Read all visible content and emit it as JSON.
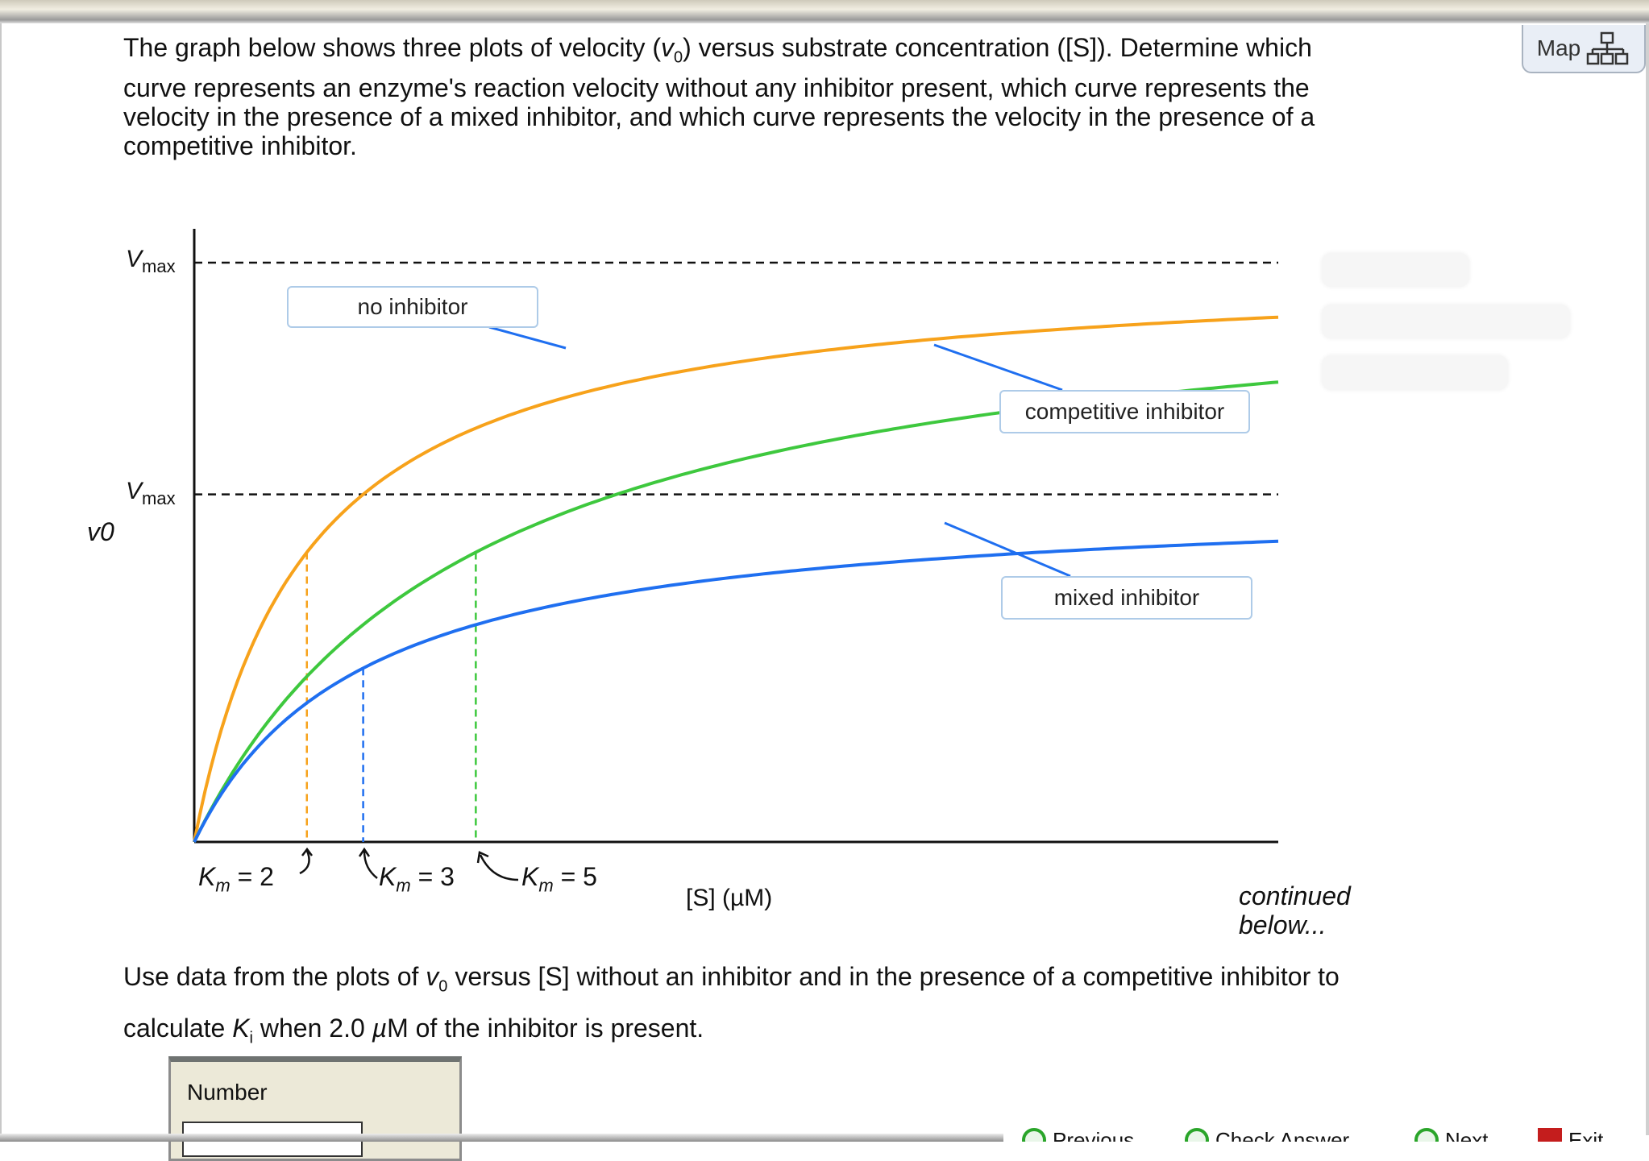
{
  "question": {
    "intro_lines": [
      [
        "The graph below shows three plots of velocity (",
        "v",
        "0",
        ") versus substrate concentration ([S]). Determine which"
      ],
      "curve represents an enzyme's reaction velocity without any inhibitor present, which curve represents the",
      "velocity in the presence of a mixed inhibitor, and which curve represents the velocity in the presence of a",
      "competitive inhibitor."
    ],
    "followup": {
      "p1": "Use data from the plots of ",
      "v": "v",
      "v_sub": "0",
      "p2": " versus [S] without an inhibitor and in the presence of a competitive inhibitor to",
      "p3": "calculate ",
      "k": "K",
      "k_sub": "i",
      "p4": " when 2.0 ",
      "mu": "µ",
      "p5": "M of the inhibitor is present."
    },
    "continued": [
      "continued",
      "below..."
    ]
  },
  "map_button": {
    "label": "Map",
    "icon": "sitemap-icon"
  },
  "answer": {
    "label": "Number",
    "value": ""
  },
  "bottom_buttons": [
    {
      "label": "Previous",
      "icon": "previous-icon",
      "color": "#2aa52a"
    },
    {
      "label": "Check Answer",
      "icon": "check-icon",
      "color": "#2aa52a"
    },
    {
      "label": "Next",
      "icon": "next-icon",
      "color": "#2aa52a"
    },
    {
      "label": "Exit",
      "icon": "exit-icon",
      "color": "#c41d1d"
    }
  ],
  "chart_data": {
    "type": "line",
    "xlabel": "[S] (µM)",
    "ylabel": "v0",
    "y_reference_lines": [
      {
        "label": "Vmax",
        "value": 1.0
      },
      {
        "label": "Vmax",
        "value": 0.6
      }
    ],
    "xlim": [
      0,
      19.25
    ],
    "ylim": [
      0,
      1.0
    ],
    "grid": false,
    "series": [
      {
        "name": "no inhibitor",
        "vmax": 1.0,
        "km": 2,
        "km_label": "Km = 2",
        "color": "#f7a21b"
      },
      {
        "name": "competitive inhibitor",
        "vmax": 1.0,
        "km": 5,
        "km_label": "Km = 5",
        "color": "#3ec83e"
      },
      {
        "name": "mixed inhibitor",
        "vmax": 0.6,
        "km": 3,
        "km_label": "Km = 3",
        "color": "#1f6ff0"
      }
    ],
    "km_labels": [
      {
        "k": "K",
        "sub": "m",
        "eq": "= 2"
      },
      {
        "k": "K",
        "sub": "m",
        "eq": "= 3"
      },
      {
        "k": "K",
        "sub": "m",
        "eq": "= 5"
      }
    ]
  }
}
